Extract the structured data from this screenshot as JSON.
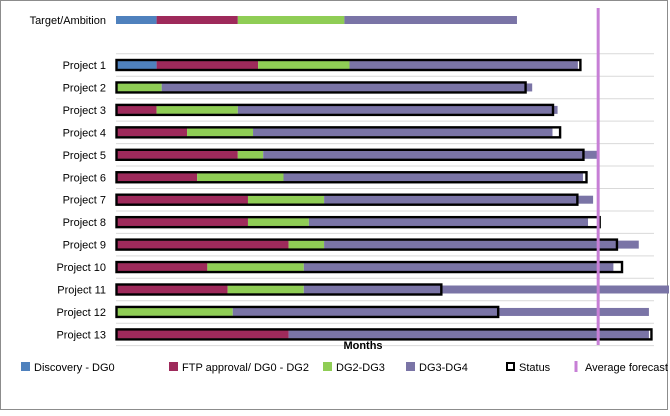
{
  "chart_data": {
    "type": "bar",
    "orientation": "horizontal-stacked",
    "xlabel": "Months",
    "categories": [
      "Target/Ambition",
      "Project 1",
      "Project 2",
      "Project 3",
      "Project 4",
      "Project 5",
      "Project 6",
      "Project 7",
      "Project 8",
      "Project 9",
      "Project 10",
      "Project 11",
      "Project 12",
      "Project 13"
    ],
    "phase_series": [
      {
        "name": "Discovery - DG0",
        "color": "#4f81bd",
        "values": [
          4,
          4,
          0,
          0,
          0,
          0,
          0,
          0,
          0,
          0,
          0,
          0,
          0,
          0
        ]
      },
      {
        "name": "FTP approval/ DG0 - DG2",
        "color": "#9e2a5b",
        "values": [
          8,
          10,
          0,
          4,
          7,
          12,
          8,
          13,
          13,
          17,
          9,
          11,
          0,
          17
        ]
      },
      {
        "name": "DG2-DG3",
        "color": "#8fcd55",
        "values": [
          10.5,
          9,
          4.5,
          8,
          6.5,
          2.5,
          8.5,
          7.5,
          6,
          3.5,
          9.5,
          7.5,
          11.5,
          0
        ]
      },
      {
        "name": "DG3-DG4",
        "color": "#7a74a6",
        "values": [
          17,
          22.5,
          36.5,
          31.5,
          29.5,
          33,
          29.5,
          26.5,
          27.5,
          31,
          30.5,
          39,
          41,
          35.5
        ]
      }
    ],
    "status": {
      "name": "Status",
      "values": [
        null,
        45.7,
        40.3,
        43,
        43.7,
        46,
        46.3,
        45.4,
        47.6,
        49.3,
        49.8,
        32,
        37.6,
        52.7
      ]
    },
    "average_forecast": {
      "name": "Average forecast",
      "value": 47.5,
      "color": "#c77fd6"
    },
    "xlim": [
      0,
      53
    ],
    "grid": "horizontal",
    "legend": "bottom"
  }
}
